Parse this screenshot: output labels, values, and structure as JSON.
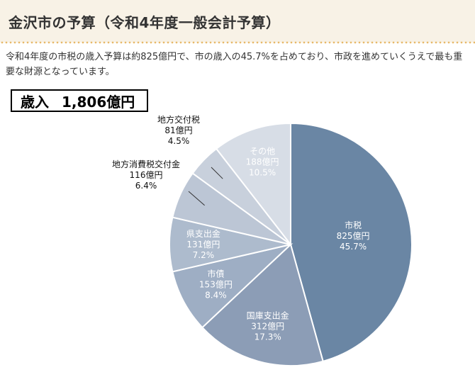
{
  "header": {
    "title": "金沢市の予算（令和4年度一般会計予算）"
  },
  "intro": {
    "text": "令和4年度の市税の歳入予算は約825億円で、市の歳入の45.7%を占めており、市政を進めていくうえで最も重要な財源となっています。"
  },
  "revenue": {
    "label": "歳入",
    "value": "1,806億円"
  },
  "chart_data": {
    "type": "pie",
    "total": "1,806億円",
    "slices": [
      {
        "name": "市税",
        "amount": "825億円",
        "percent": "45.7%",
        "value": 45.7,
        "color": "#6a86a4",
        "text_color": "#ffffff",
        "label_position": "inside"
      },
      {
        "name": "国庫支出金",
        "amount": "312億円",
        "percent": "17.3%",
        "value": 17.3,
        "color": "#8c9db6",
        "text_color": "#ffffff",
        "label_position": "inside"
      },
      {
        "name": "市債",
        "amount": "153億円",
        "percent": "8.4%",
        "value": 8.4,
        "color": "#9eaec4",
        "text_color": "#ffffff",
        "label_position": "inside"
      },
      {
        "name": "県支出金",
        "amount": "131億円",
        "percent": "7.2%",
        "value": 7.2,
        "color": "#adbbcd",
        "text_color": "#ffffff",
        "label_position": "inside"
      },
      {
        "name": "地方消費税交付金",
        "amount": "116億円",
        "percent": "6.4%",
        "value": 6.4,
        "color": "#bcc6d5",
        "text_color": "#111111",
        "label_position": "outside"
      },
      {
        "name": "地方交付税",
        "amount": "81億円",
        "percent": "4.5%",
        "value": 4.5,
        "color": "#c8d0dc",
        "text_color": "#111111",
        "label_position": "outside"
      },
      {
        "name": "その他",
        "amount": "188億円",
        "percent": "10.5%",
        "value": 10.5,
        "color": "#d7dde6",
        "text_color": "#ffffff",
        "label_position": "inside"
      }
    ]
  }
}
